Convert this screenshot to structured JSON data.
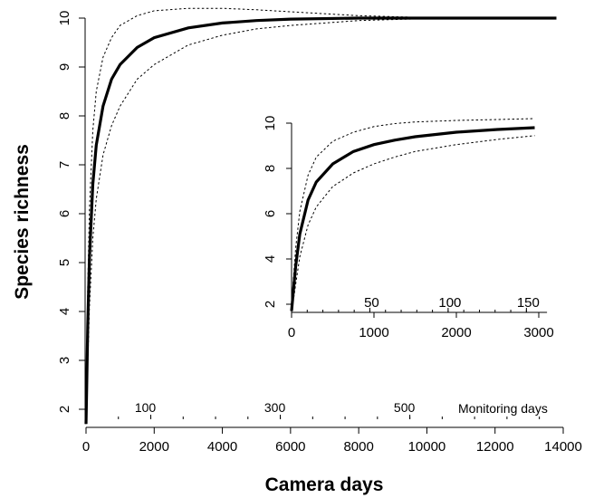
{
  "chart_data": [
    {
      "type": "line",
      "xlabel": "Camera days",
      "ylabel": "Species richness",
      "xlim": [
        0,
        14000
      ],
      "ylim": [
        1.7,
        10.1
      ],
      "x_ticks": [
        0,
        2000,
        4000,
        6000,
        8000,
        10000,
        12000,
        14000
      ],
      "y_ticks": [
        2,
        3,
        4,
        5,
        6,
        7,
        8,
        9,
        10
      ],
      "secondary_axis": {
        "label": "Monitoring days",
        "ticks": [
          {
            "label": "100",
            "camera_days": 1900
          },
          {
            "label": "300",
            "camera_days": 5700
          },
          {
            "label": "500",
            "camera_days": 9500
          }
        ]
      },
      "series": [
        {
          "role": "estimate",
          "style": "solid",
          "x": [
            0,
            20,
            50,
            100,
            200,
            300,
            500,
            750,
            1000,
            1500,
            2000,
            3000,
            4000,
            5000,
            6000,
            8000,
            10000,
            12000,
            13800
          ],
          "y": [
            1.7,
            2.5,
            3.7,
            5.1,
            6.6,
            7.4,
            8.2,
            8.75,
            9.05,
            9.4,
            9.6,
            9.8,
            9.9,
            9.95,
            9.98,
            10,
            10,
            10,
            10
          ]
        },
        {
          "role": "upper_ci",
          "style": "dotted",
          "x": [
            0,
            20,
            50,
            100,
            200,
            300,
            500,
            750,
            1000,
            1500,
            2000,
            3000,
            4000,
            5000,
            6000,
            8000,
            10000,
            12000,
            13800
          ],
          "y": [
            1.7,
            3.0,
            4.5,
            6.1,
            7.7,
            8.5,
            9.2,
            9.6,
            9.85,
            10.05,
            10.15,
            10.2,
            10.2,
            10.17,
            10.13,
            10.05,
            10.01,
            10,
            10
          ]
        },
        {
          "role": "lower_ci",
          "style": "dotted",
          "x": [
            0,
            20,
            50,
            100,
            200,
            300,
            500,
            750,
            1000,
            1500,
            2000,
            3000,
            4000,
            5000,
            6000,
            8000,
            10000,
            12000,
            13800
          ],
          "y": [
            1.7,
            2.1,
            2.9,
            4.1,
            5.5,
            6.3,
            7.2,
            7.8,
            8.2,
            8.75,
            9.05,
            9.45,
            9.65,
            9.78,
            9.85,
            9.95,
            9.99,
            10,
            10
          ]
        }
      ]
    },
    {
      "type": "line",
      "inset": true,
      "xlim": [
        0,
        3100
      ],
      "ylim": [
        1.7,
        10
      ],
      "x_ticks": [
        0,
        1000,
        2000,
        3000
      ],
      "y_ticks": [
        2,
        4,
        6,
        8,
        10
      ],
      "secondary_axis": {
        "ticks": [
          {
            "label": "50",
            "camera_days": 950
          },
          {
            "label": "100",
            "camera_days": 1900
          },
          {
            "label": "150",
            "camera_days": 2850
          }
        ]
      },
      "series": [
        {
          "role": "estimate",
          "style": "solid",
          "x": [
            0,
            20,
            50,
            100,
            200,
            300,
            500,
            750,
            1000,
            1250,
            1500,
            2000,
            2500,
            2950
          ],
          "y": [
            1.7,
            2.5,
            3.7,
            5.1,
            6.6,
            7.4,
            8.2,
            8.75,
            9.05,
            9.25,
            9.4,
            9.6,
            9.72,
            9.8
          ]
        },
        {
          "role": "upper_ci",
          "style": "dotted",
          "x": [
            0,
            20,
            50,
            100,
            200,
            300,
            500,
            750,
            1000,
            1250,
            1500,
            2000,
            2500,
            2950
          ],
          "y": [
            1.7,
            3.0,
            4.5,
            6.1,
            7.7,
            8.5,
            9.2,
            9.6,
            9.85,
            9.98,
            10.05,
            10.12,
            10.16,
            10.2
          ]
        },
        {
          "role": "lower_ci",
          "style": "dotted",
          "x": [
            0,
            20,
            50,
            100,
            200,
            300,
            500,
            750,
            1000,
            1250,
            1500,
            2000,
            2500,
            2950
          ],
          "y": [
            1.7,
            2.1,
            2.9,
            4.1,
            5.5,
            6.3,
            7.2,
            7.8,
            8.2,
            8.5,
            8.75,
            9.05,
            9.28,
            9.45
          ]
        }
      ]
    }
  ]
}
